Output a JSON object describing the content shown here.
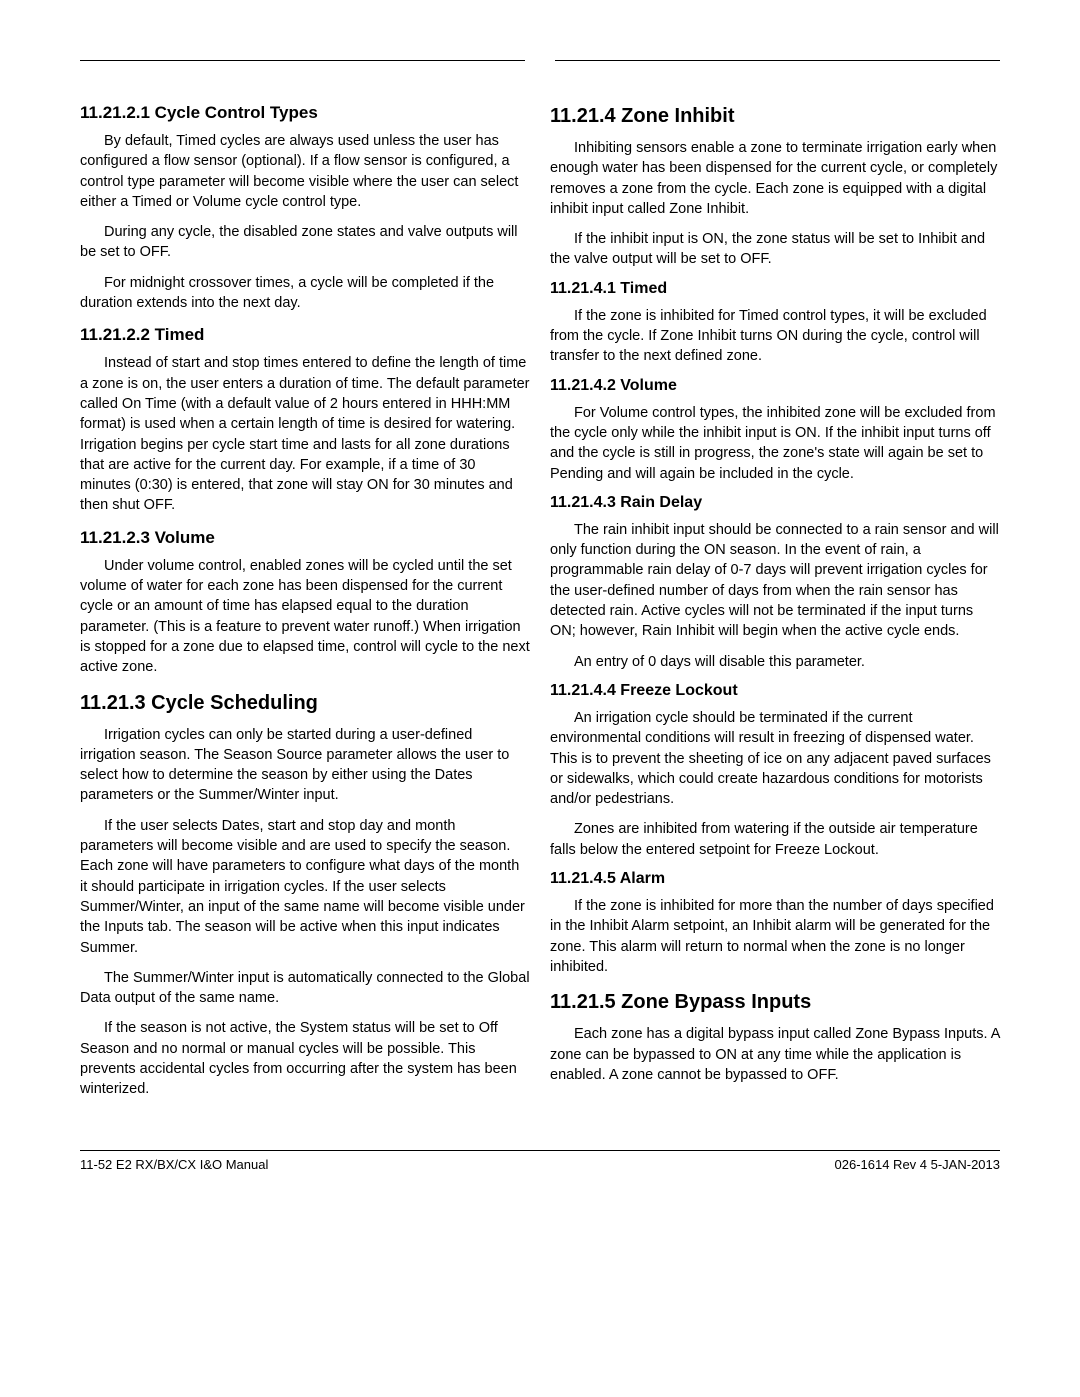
{
  "left": {
    "h3_1": "11.21.2.1  Cycle Control Types",
    "p1": "By default, Timed cycles are always used unless the user has configured a flow sensor (optional). If a flow sensor is configured, a control type parameter will become visible where the user can select either a Timed or Volume cycle control type.",
    "p2": "During any cycle, the disabled zone states and valve outputs will be set to OFF.",
    "p3": "For midnight crossover times, a cycle will be completed if the duration extends into the next day.",
    "h3_2": "11.21.2.2  Timed",
    "p4": "Instead of start and stop times entered to define the length of time a zone is on, the user enters a duration of time. The default parameter called On Time (with a default value of 2 hours entered in HHH:MM format) is used when a certain length of time is desired for watering. Irrigation begins per cycle start time and lasts for all zone durations that are active for the current day. For example, if a time of 30 minutes (0:30) is entered, that zone will stay ON for 30 minutes and then shut OFF.",
    "h3_3": "11.21.2.3  Volume",
    "p5": "Under volume control, enabled zones will be cycled until the set volume of water for each zone has been dispensed for the current cycle or an amount of time has elapsed equal to the duration parameter. (This is a feature to prevent water runoff.) When irrigation is stopped for a zone due to elapsed time, control will cycle to the next active zone.",
    "h2_1": "11.21.3  Cycle Scheduling",
    "p6": "Irrigation cycles can only be started during a user-defined irrigation season. The Season Source parameter allows the user to select how to determine the season by either using the Dates parameters or the Summer/Winter input.",
    "p7": "If the user selects Dates, start and stop day and month parameters will become visible and are used to specify the season. Each zone will have parameters to configure what days of the month it should participate in irrigation cycles. If the user selects Summer/Winter, an input of the same name will become visible under the Inputs tab. The season will be active when this input indicates Summer.",
    "p8": "The Summer/Winter input is automatically connected to the Global Data output of the same name.",
    "p9": "If the season is not active, the System status will be set to Off Season and no normal or manual cycles will be possible. This prevents accidental cycles from occurring after the system has been winterized."
  },
  "right": {
    "h2_1": "11.21.4  Zone Inhibit",
    "p1": "Inhibiting sensors enable a zone to terminate irrigation early when enough water has been dispensed for the current cycle, or completely removes a zone from the cycle. Each zone is equipped with a digital inhibit input called Zone Inhibit.",
    "p2": "If the inhibit input is ON, the zone status will be set to Inhibit and the valve output will be set to OFF.",
    "h3_1": "11.21.4.1  Timed",
    "p3": "If the zone is inhibited for Timed control types, it will be excluded from the cycle. If Zone Inhibit turns ON during the cycle, control will transfer to the next defined zone.",
    "h3_2": "11.21.4.2  Volume",
    "p4": "For Volume control types, the inhibited zone will be excluded from the cycle only while the inhibit input is ON. If the inhibit input turns off and the cycle is still in progress, the zone's state will again be set to Pending and will again be included in the cycle.",
    "h3_3": "11.21.4.3  Rain Delay",
    "p5": "The rain inhibit input should be connected to a rain sensor and will only function during the ON season. In the event of rain, a programmable rain delay of 0-7 days will prevent irrigation cycles for the user-defined number of days from when the rain sensor has detected rain. Active cycles will not be terminated if the input turns ON; however, Rain Inhibit will begin when the active cycle ends.",
    "p6": "An entry of 0 days will disable this parameter.",
    "h3_4": "11.21.4.4  Freeze Lockout",
    "p7": "An irrigation cycle should be terminated if the current environmental conditions will result in freezing of dispensed water. This is to prevent the sheeting of ice on any adjacent paved surfaces or sidewalks, which could create hazardous conditions for motorists and/or pedestrians.",
    "p8": "Zones are inhibited from watering if the outside air temperature falls below the entered setpoint for Freeze Lockout.",
    "h3_5": "11.21.4.5  Alarm",
    "p9": "If the zone is inhibited for more than the number of days specified in the Inhibit Alarm setpoint, an Inhibit alarm will be generated for the zone. This alarm will return to normal when the zone is no longer inhibited.",
    "h2_2": "11.21.5  Zone Bypass Inputs",
    "p10": "Each zone has a digital bypass input called Zone Bypass Inputs. A zone can be bypassed to ON at any time while the application is enabled. A zone cannot be bypassed to OFF."
  },
  "footer": {
    "left": "11-52   E2 RX/BX/CX I&O Manual",
    "right": "026-1614 Rev 4 5-JAN-2013"
  }
}
